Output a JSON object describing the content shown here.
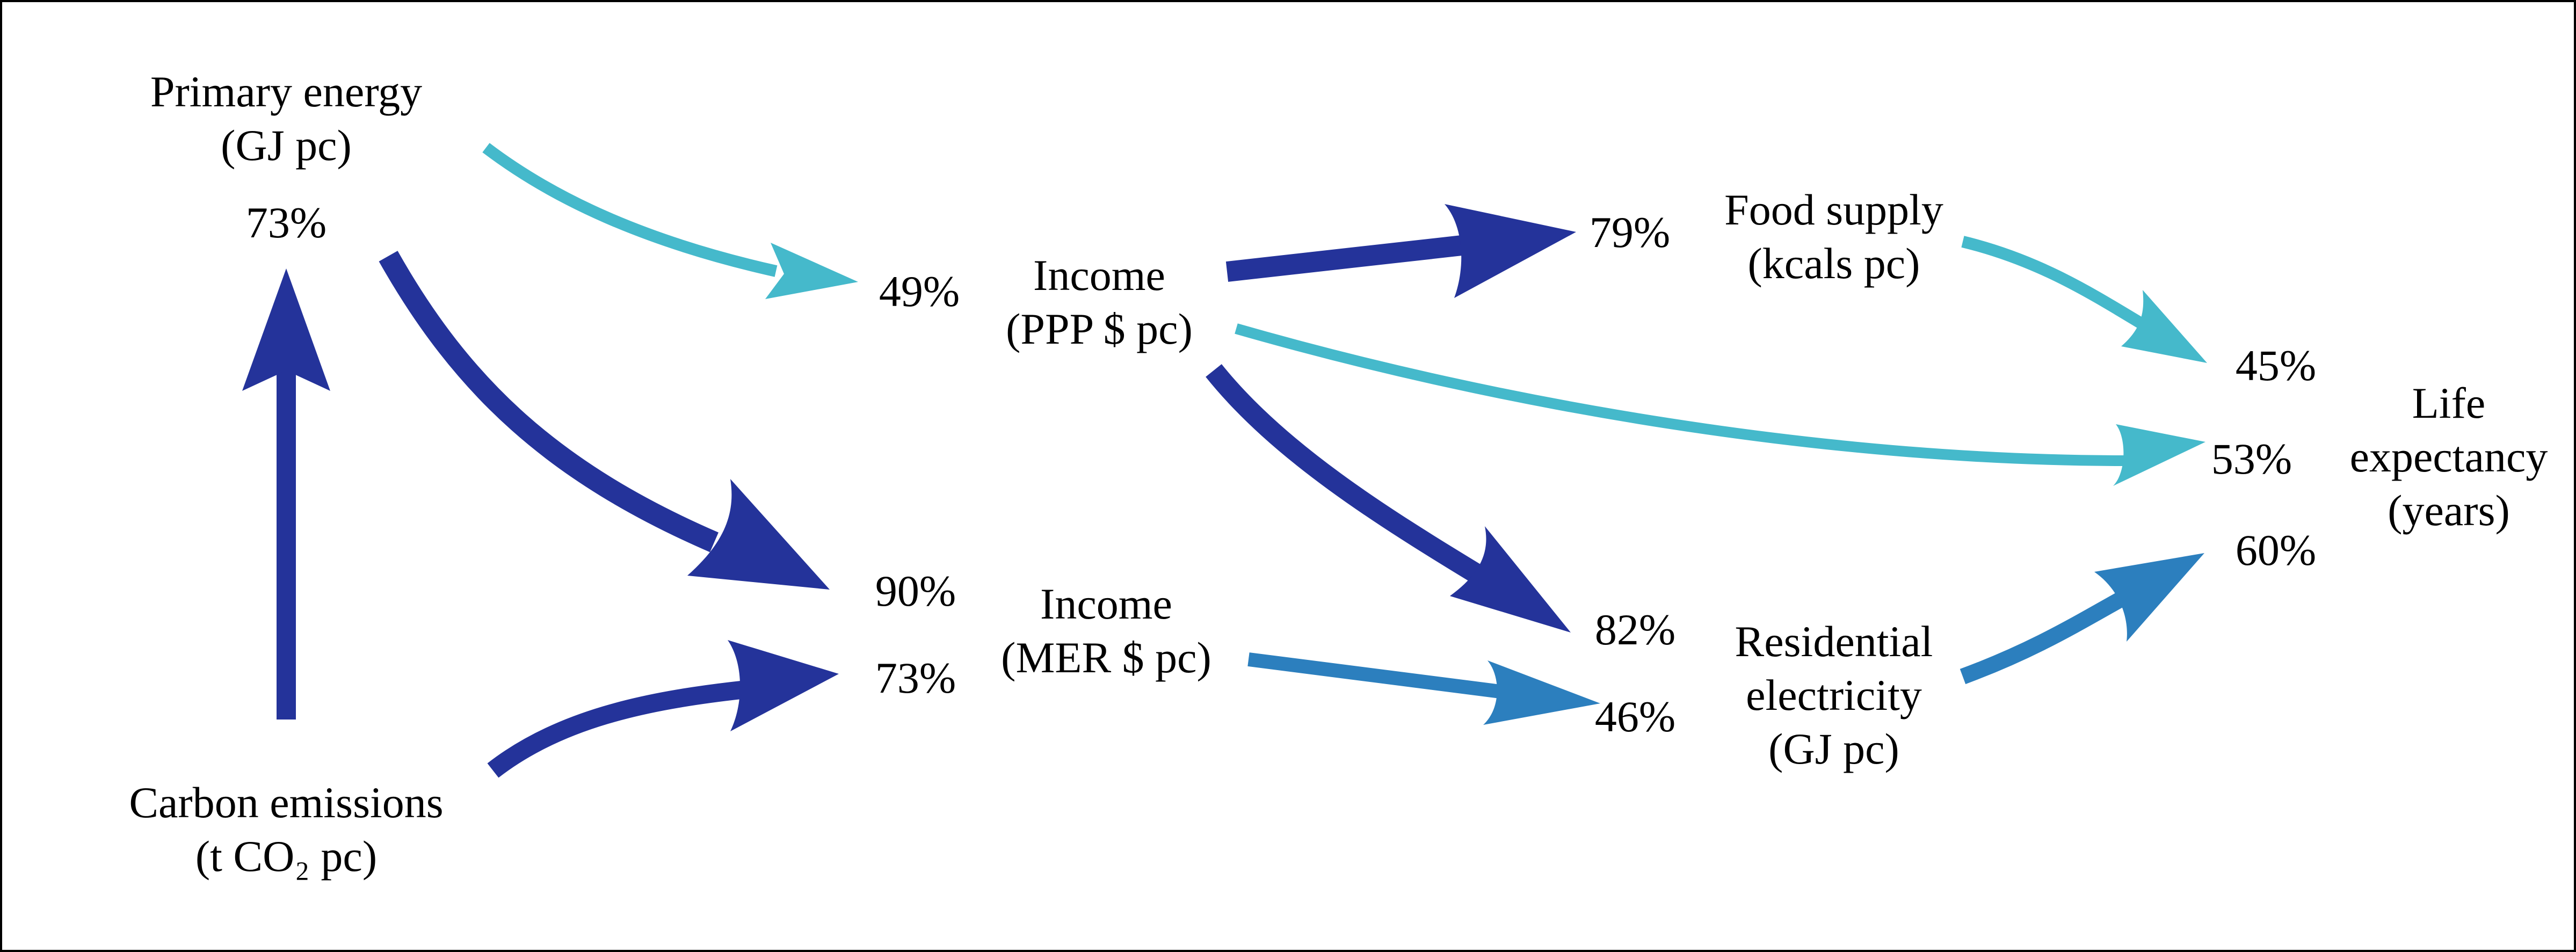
{
  "colors": {
    "dark_blue": "#24339A",
    "mid_blue": "#2C7FBE",
    "cyan": "#45B9CB",
    "text": "#000000",
    "frame": "#000000"
  },
  "nodes": {
    "primary_energy": {
      "line1": "Primary energy",
      "line2": "(GJ pc)",
      "pct": "73%"
    },
    "carbon_emissions": {
      "line1": "Carbon emissions",
      "line2": "(t CO₂ pc)"
    },
    "income_ppp": {
      "line1": "Income",
      "line2": "(PPP $ pc)",
      "pct": "49%"
    },
    "income_mer": {
      "line1": "Income",
      "line2": "(MER $ pc)",
      "pct_top": "90%",
      "pct_bottom": "73%"
    },
    "food_supply": {
      "line1": "Food supply",
      "line2": "(kcals pc)",
      "pct": "79%"
    },
    "residential_electricity": {
      "line1": "Residential",
      "line2": "electricity",
      "line3": "(GJ pc)",
      "pct_top": "82%",
      "pct_bottom": "46%"
    },
    "life_expectancy": {
      "line1": "Life",
      "line2": "expectancy",
      "line3": "(years)",
      "pct_top": "45%",
      "pct_mid": "53%",
      "pct_bottom": "60%"
    }
  },
  "edges": [
    {
      "from": "Carbon emissions",
      "to": "Primary energy",
      "color": "dark_blue"
    },
    {
      "from": "Primary energy",
      "to": "Income (PPP $ pc)",
      "color": "cyan"
    },
    {
      "from": "Primary energy",
      "to": "Income (MER $ pc)",
      "color": "dark_blue"
    },
    {
      "from": "Carbon emissions",
      "to": "Income (MER $ pc)",
      "color": "dark_blue"
    },
    {
      "from": "Income (PPP $ pc)",
      "to": "Food supply",
      "color": "dark_blue"
    },
    {
      "from": "Income (PPP $ pc)",
      "to": "Residential electricity",
      "color": "dark_blue"
    },
    {
      "from": "Income (PPP $ pc)",
      "to": "Life expectancy",
      "color": "cyan"
    },
    {
      "from": "Income (MER $ pc)",
      "to": "Residential electricity",
      "color": "mid_blue"
    },
    {
      "from": "Food supply",
      "to": "Life expectancy",
      "color": "cyan"
    },
    {
      "from": "Residential electricity",
      "to": "Life expectancy",
      "color": "mid_blue"
    }
  ]
}
